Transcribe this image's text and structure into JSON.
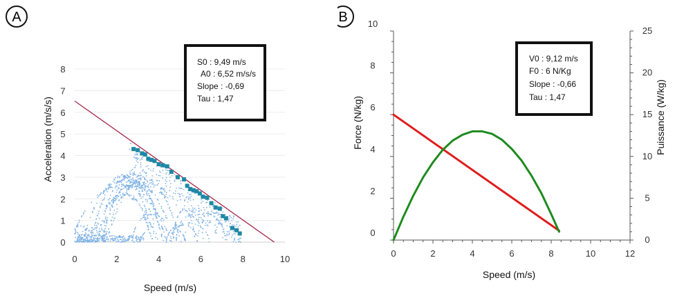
{
  "panels": [
    {
      "letter": "A"
    },
    {
      "letter": "B"
    }
  ],
  "chart_data": [
    {
      "type": "scatter",
      "xlabel": "Speed (m/s)",
      "ylabel": "Acceleration (m/s/s)",
      "xlim": [
        0,
        10
      ],
      "ylim": [
        0,
        8
      ],
      "xticks": [
        "0",
        "2",
        "4",
        "6",
        "8",
        "10"
      ],
      "yticks": [
        "0",
        "1",
        "2",
        "3",
        "4",
        "5",
        "6",
        "7",
        "8"
      ],
      "grid": true,
      "annotation": [
        "S0 : 9,49 m/s",
        "A0 : 6,52 m/s/s",
        "Slope : -0,69",
        "Tau : 1,47"
      ],
      "colors": {
        "regression": "#a0183f",
        "max_points": "#1f87a5",
        "raw": "#7fb2e5"
      },
      "regression_line": {
        "x": [
          0,
          9.49
        ],
        "y": [
          6.52,
          0
        ]
      },
      "max_points": {
        "x": [
          2.8,
          3.0,
          3.2,
          3.35,
          3.5,
          3.65,
          3.8,
          4.0,
          4.2,
          4.4,
          4.6,
          4.9,
          5.2,
          5.35,
          5.5,
          5.65,
          5.8,
          5.95,
          6.1,
          6.3,
          6.5,
          6.7,
          6.9,
          7.05,
          7.2,
          7.5,
          7.7,
          7.85
        ],
        "y": [
          4.3,
          4.25,
          4.1,
          4.05,
          3.85,
          3.8,
          3.75,
          3.6,
          3.55,
          3.5,
          3.25,
          3.0,
          2.9,
          2.6,
          2.45,
          2.4,
          2.35,
          2.25,
          2.1,
          2.05,
          1.8,
          1.6,
          1.55,
          1.2,
          1.1,
          0.65,
          0.55,
          0.4
        ]
      }
    },
    {
      "type": "line",
      "xlabel": "Speed (m/s)",
      "ylabel": "Force (N/kg)",
      "y2label": "Puissance (W/kg)",
      "xlim": [
        0,
        12
      ],
      "ylim": [
        0,
        10
      ],
      "y2lim": [
        0,
        25
      ],
      "xticks": [
        "0",
        "2",
        "4",
        "6",
        "8",
        "10",
        "12"
      ],
      "yticks": [
        "0",
        "2",
        "4",
        "6",
        "8",
        "10"
      ],
      "y2ticks": [
        "0",
        "5",
        "10",
        "15",
        "20",
        "25"
      ],
      "grid": false,
      "annotation": [
        "V0 : 9,12 m/s",
        "F0 : 6 N/Kg",
        "Slope : -0,66",
        "Tau : 1,47"
      ],
      "series": [
        {
          "color": "#e01b1b",
          "axis": "left",
          "x": [
            0,
            8.4
          ],
          "y": [
            6.0,
            0.45
          ]
        },
        {
          "color": "#1e8a1e",
          "axis": "right",
          "x": [
            0,
            0.5,
            1,
            1.5,
            2,
            2.5,
            3,
            3.5,
            4,
            4.5,
            5,
            5.5,
            6,
            6.5,
            7,
            7.5,
            8,
            8.4
          ],
          "y": [
            0.0,
            2.8,
            5.3,
            7.5,
            9.3,
            10.8,
            11.9,
            12.6,
            13.0,
            13.0,
            12.7,
            12.0,
            10.9,
            9.5,
            7.7,
            5.6,
            3.1,
            1.0
          ]
        }
      ]
    }
  ]
}
